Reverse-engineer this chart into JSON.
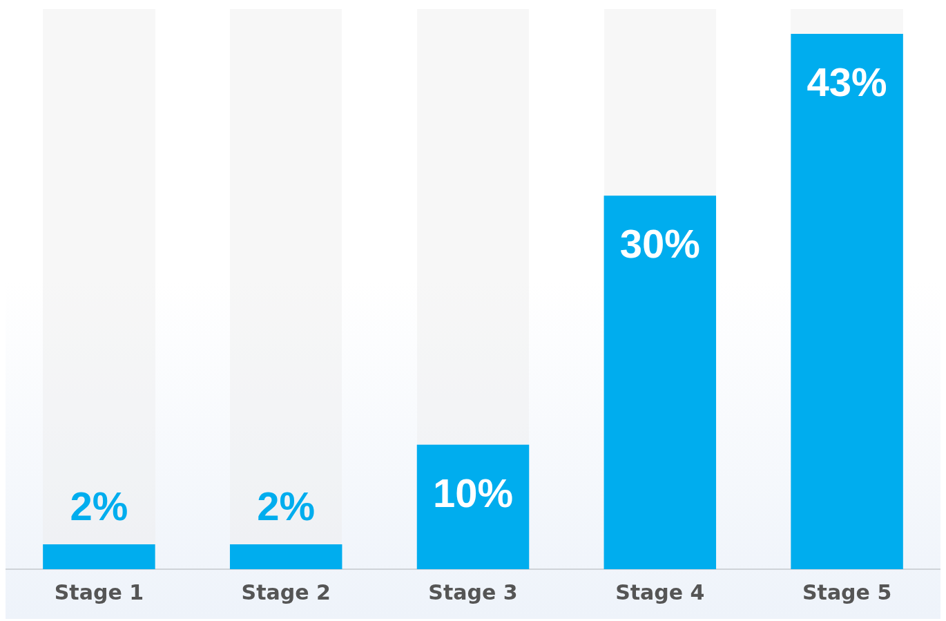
{
  "chart_data": {
    "type": "bar",
    "categories": [
      "Stage 1",
      "Stage 2",
      "Stage 3",
      "Stage 4",
      "Stage 5"
    ],
    "values": [
      2,
      2,
      10,
      30,
      43
    ],
    "color": "#00adee",
    "ylim": [
      0,
      45
    ],
    "value_labels": [
      "2%",
      "2%",
      "10%",
      "30%",
      "43%"
    ]
  }
}
